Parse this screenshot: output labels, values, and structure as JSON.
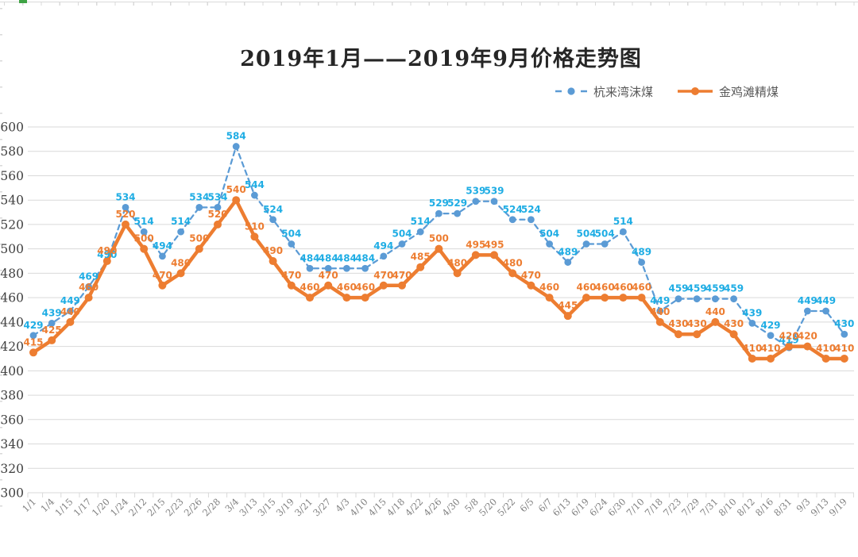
{
  "chart_data": {
    "type": "line",
    "title": "2019年1月——2019年9月价格走势图",
    "categories": [
      "1/1",
      "1/4",
      "1/15",
      "1/17",
      "1/20",
      "1/24",
      "2/12",
      "2/15",
      "2/23",
      "2/26",
      "2/28",
      "3/4",
      "3/13",
      "3/15",
      "3/19",
      "3/21",
      "3/27",
      "4/3",
      "4/10",
      "4/15",
      "4/18",
      "4/22",
      "4/26",
      "4/30",
      "5/8",
      "5/20",
      "5/22",
      "6/5",
      "6/7",
      "6/13",
      "6/19",
      "6/24",
      "6/30",
      "7/10",
      "7/18",
      "7/23",
      "7/29",
      "7/31",
      "8/10",
      "8/12",
      "8/16",
      "8/31",
      "9/3",
      "9/13",
      "9/19"
    ],
    "series": [
      {
        "name": "杭来湾沫煤",
        "line_color": "#5b9bd5",
        "label_color": "#1fade4",
        "dashed": true,
        "values": [
          429,
          439,
          449,
          469,
          490,
          534,
          514,
          494,
          514,
          534,
          534,
          584,
          544,
          524,
          504,
          484,
          484,
          484,
          484,
          494,
          504,
          514,
          529,
          529,
          539,
          539,
          524,
          524,
          504,
          489,
          504,
          504,
          514,
          489,
          449,
          459,
          459,
          459,
          459,
          439,
          429,
          419,
          449,
          449,
          430
        ]
      },
      {
        "name": "金鸡滩精煤",
        "line_color": "#ed7d31",
        "label_color": "#ed7d31",
        "dashed": false,
        "values": [
          415,
          425,
          440,
          460,
          490,
          520,
          500,
          470,
          480,
          500,
          520,
          540,
          510,
          490,
          470,
          460,
          470,
          460,
          460,
          470,
          470,
          485,
          500,
          480,
          495,
          495,
          480,
          470,
          460,
          445,
          460,
          460,
          460,
          460,
          440,
          430,
          430,
          440,
          430,
          410,
          410,
          420,
          420,
          410,
          410
        ]
      }
    ],
    "ylim": [
      300,
      600
    ],
    "ytick_step": 20,
    "yticks": [
      300,
      320,
      340,
      360,
      380,
      400,
      420,
      440,
      460,
      480,
      500,
      520,
      540,
      560,
      580,
      600
    ],
    "grid": true,
    "legend_position": "top-right",
    "colors": {
      "gridline": "#d9d9d9",
      "y_tick_label": "#404040",
      "x_tick_label": "#7f7f7f",
      "title": "#262626",
      "legend_text": "#595959",
      "background": "#ffffff"
    }
  }
}
